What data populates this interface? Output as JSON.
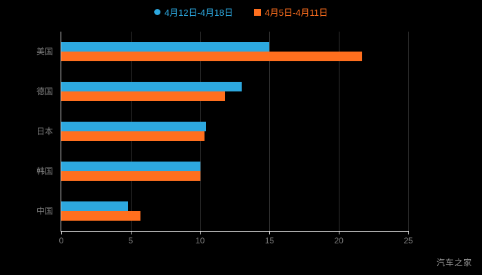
{
  "legend": {
    "items": [
      {
        "label": "4月12日-4月18日",
        "color": "#2DA8DF",
        "marker": "circle"
      },
      {
        "label": "4月5日-4月11日",
        "color": "#FF6F1E",
        "marker": "square"
      }
    ]
  },
  "watermark": "汽车之家",
  "colors": {
    "background": "#000000",
    "axis": "#d8d8d8",
    "gridline": "#333333",
    "tick_text": "#7f7f7f",
    "series_blue": "#2DA8DF",
    "series_orange": "#FF6F1E"
  },
  "chart_data": {
    "type": "bar",
    "orientation": "horizontal",
    "title": "",
    "xlabel": "",
    "ylabel": "",
    "categories": [
      "美国",
      "德国",
      "日本",
      "韩国",
      "中国"
    ],
    "series": [
      {
        "name": "4月12日-4月18日",
        "color": "#2DA8DF",
        "values": [
          15.0,
          13.0,
          10.4,
          10.0,
          4.8
        ]
      },
      {
        "name": "4月5日-4月11日",
        "color": "#FF6F1E",
        "values": [
          21.7,
          11.8,
          10.3,
          10.0,
          5.7
        ]
      }
    ],
    "xlim": [
      0,
      25
    ],
    "xticks": [
      0,
      5,
      10,
      15,
      20,
      25
    ],
    "grid": true,
    "legend_position": "top",
    "background": "#000000"
  }
}
